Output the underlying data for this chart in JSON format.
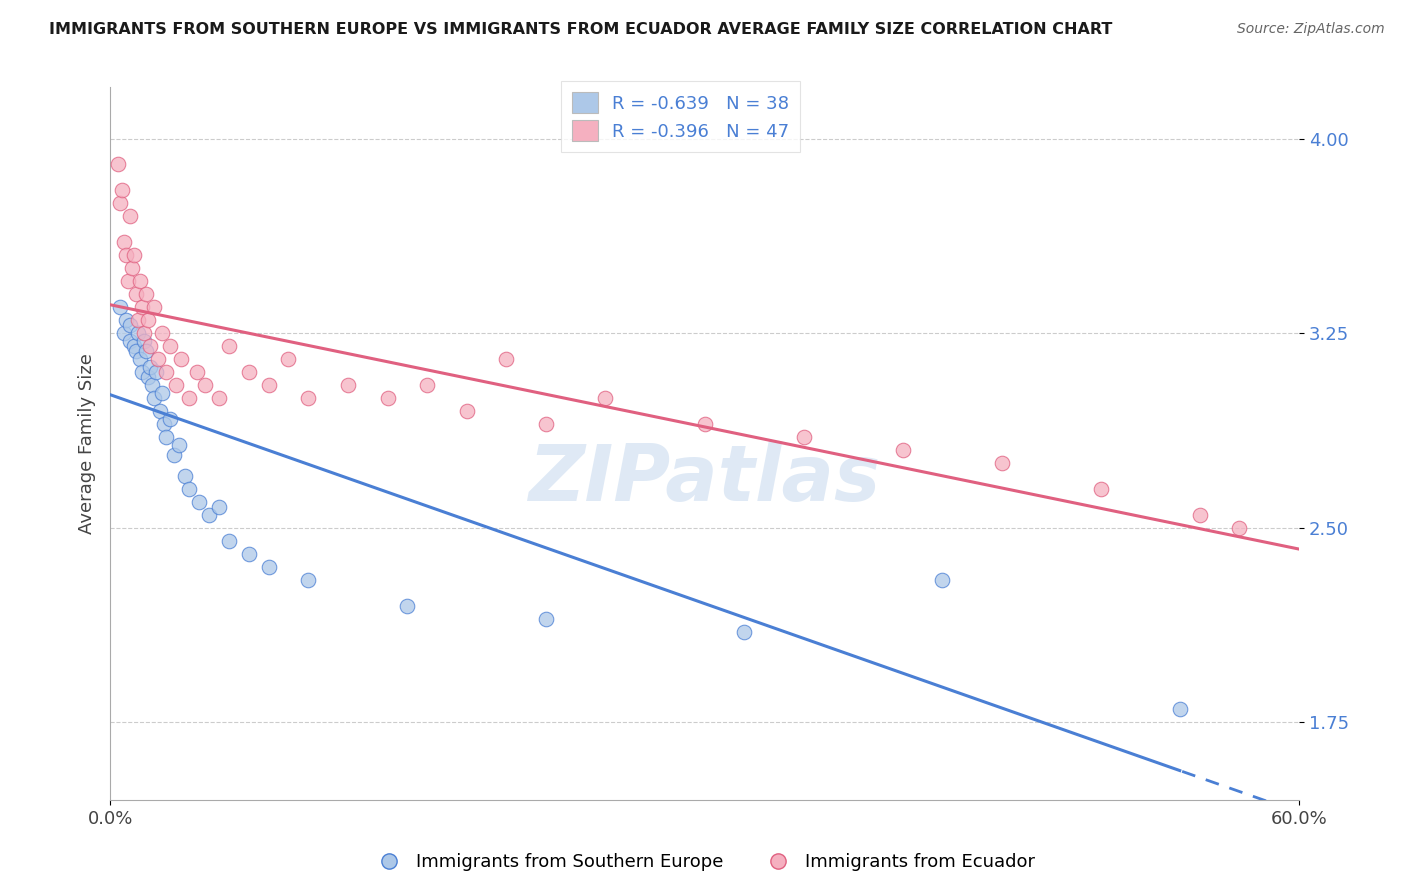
{
  "title": "IMMIGRANTS FROM SOUTHERN EUROPE VS IMMIGRANTS FROM ECUADOR AVERAGE FAMILY SIZE CORRELATION CHART",
  "source": "Source: ZipAtlas.com",
  "ylabel": "Average Family Size",
  "xlim": [
    0.0,
    0.6
  ],
  "ylim": [
    1.45,
    4.2
  ],
  "yticks": [
    1.75,
    2.5,
    3.25,
    4.0
  ],
  "blue_R": -0.639,
  "blue_N": 38,
  "pink_R": -0.396,
  "pink_N": 47,
  "blue_color": "#adc8e8",
  "pink_color": "#f5b0c0",
  "blue_line_color": "#4a7fd4",
  "pink_line_color": "#e06080",
  "watermark": "ZIPatlas",
  "legend_label_blue": "Immigrants from Southern Europe",
  "legend_label_pink": "Immigrants from Ecuador",
  "blue_scatter_x": [
    0.005,
    0.007,
    0.008,
    0.01,
    0.01,
    0.012,
    0.013,
    0.014,
    0.015,
    0.016,
    0.017,
    0.018,
    0.019,
    0.02,
    0.021,
    0.022,
    0.023,
    0.025,
    0.026,
    0.027,
    0.028,
    0.03,
    0.032,
    0.035,
    0.038,
    0.04,
    0.045,
    0.05,
    0.055,
    0.06,
    0.07,
    0.08,
    0.1,
    0.15,
    0.22,
    0.32,
    0.42,
    0.54
  ],
  "blue_scatter_y": [
    3.35,
    3.25,
    3.3,
    3.28,
    3.22,
    3.2,
    3.18,
    3.25,
    3.15,
    3.1,
    3.22,
    3.18,
    3.08,
    3.12,
    3.05,
    3.0,
    3.1,
    2.95,
    3.02,
    2.9,
    2.85,
    2.92,
    2.78,
    2.82,
    2.7,
    2.65,
    2.6,
    2.55,
    2.58,
    2.45,
    2.4,
    2.35,
    2.3,
    2.2,
    2.15,
    2.1,
    2.3,
    1.8
  ],
  "pink_scatter_x": [
    0.004,
    0.005,
    0.006,
    0.007,
    0.008,
    0.009,
    0.01,
    0.011,
    0.012,
    0.013,
    0.014,
    0.015,
    0.016,
    0.017,
    0.018,
    0.019,
    0.02,
    0.022,
    0.024,
    0.026,
    0.028,
    0.03,
    0.033,
    0.036,
    0.04,
    0.044,
    0.048,
    0.055,
    0.06,
    0.07,
    0.08,
    0.09,
    0.1,
    0.12,
    0.14,
    0.16,
    0.18,
    0.2,
    0.22,
    0.25,
    0.3,
    0.35,
    0.4,
    0.45,
    0.5,
    0.55,
    0.57
  ],
  "pink_scatter_y": [
    3.9,
    3.75,
    3.8,
    3.6,
    3.55,
    3.45,
    3.7,
    3.5,
    3.55,
    3.4,
    3.3,
    3.45,
    3.35,
    3.25,
    3.4,
    3.3,
    3.2,
    3.35,
    3.15,
    3.25,
    3.1,
    3.2,
    3.05,
    3.15,
    3.0,
    3.1,
    3.05,
    3.0,
    3.2,
    3.1,
    3.05,
    3.15,
    3.0,
    3.05,
    3.0,
    3.05,
    2.95,
    3.15,
    2.9,
    3.0,
    2.9,
    2.85,
    2.8,
    2.75,
    2.65,
    2.55,
    2.5
  ]
}
